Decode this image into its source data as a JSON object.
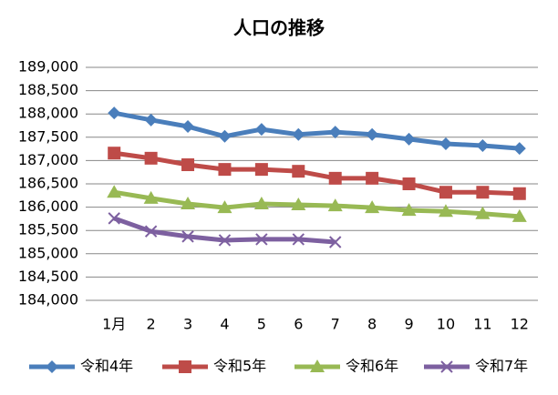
{
  "chart_data": {
    "type": "line",
    "title": "人口の推移",
    "categories": [
      "1月",
      "2",
      "3",
      "4",
      "5",
      "6",
      "7",
      "8",
      "9",
      "10",
      "11",
      "12"
    ],
    "series": [
      {
        "name": "令和4年",
        "color": "#4a7ebb",
        "marker": "diamond",
        "values": [
          188020,
          187870,
          187730,
          187520,
          187670,
          187560,
          187610,
          187560,
          187460,
          187360,
          187320,
          187260
        ]
      },
      {
        "name": "令和5年",
        "color": "#be4b48",
        "marker": "square",
        "values": [
          187160,
          187050,
          186910,
          186810,
          186810,
          186770,
          186620,
          186620,
          186500,
          186320,
          186320,
          186290
        ]
      },
      {
        "name": "令和6年",
        "color": "#98b954",
        "marker": "triangle",
        "values": [
          186320,
          186190,
          186070,
          185990,
          186070,
          186050,
          186030,
          185990,
          185930,
          185910,
          185860,
          185800
        ]
      },
      {
        "name": "令和7年",
        "color": "#7d60a0",
        "marker": "x",
        "values": [
          185760,
          185480,
          185370,
          185290,
          185310,
          185310,
          185250,
          null,
          null,
          null,
          null,
          null
        ]
      }
    ],
    "ylim": [
      184000,
      189000
    ],
    "yticks": [
      {
        "value": 184000,
        "label": "184,000"
      },
      {
        "value": 184500,
        "label": "184,500"
      },
      {
        "value": 185000,
        "label": "185,000"
      },
      {
        "value": 185500,
        "label": "185,500"
      },
      {
        "value": 186000,
        "label": "186,000"
      },
      {
        "value": 186500,
        "label": "186,500"
      },
      {
        "value": 187000,
        "label": "187,000"
      },
      {
        "value": 187500,
        "label": "187,500"
      },
      {
        "value": 188000,
        "label": "188,000"
      },
      {
        "value": 188500,
        "label": "188,500"
      },
      {
        "value": 189000,
        "label": "189,000"
      }
    ],
    "grid": true,
    "legend": "bottom"
  }
}
